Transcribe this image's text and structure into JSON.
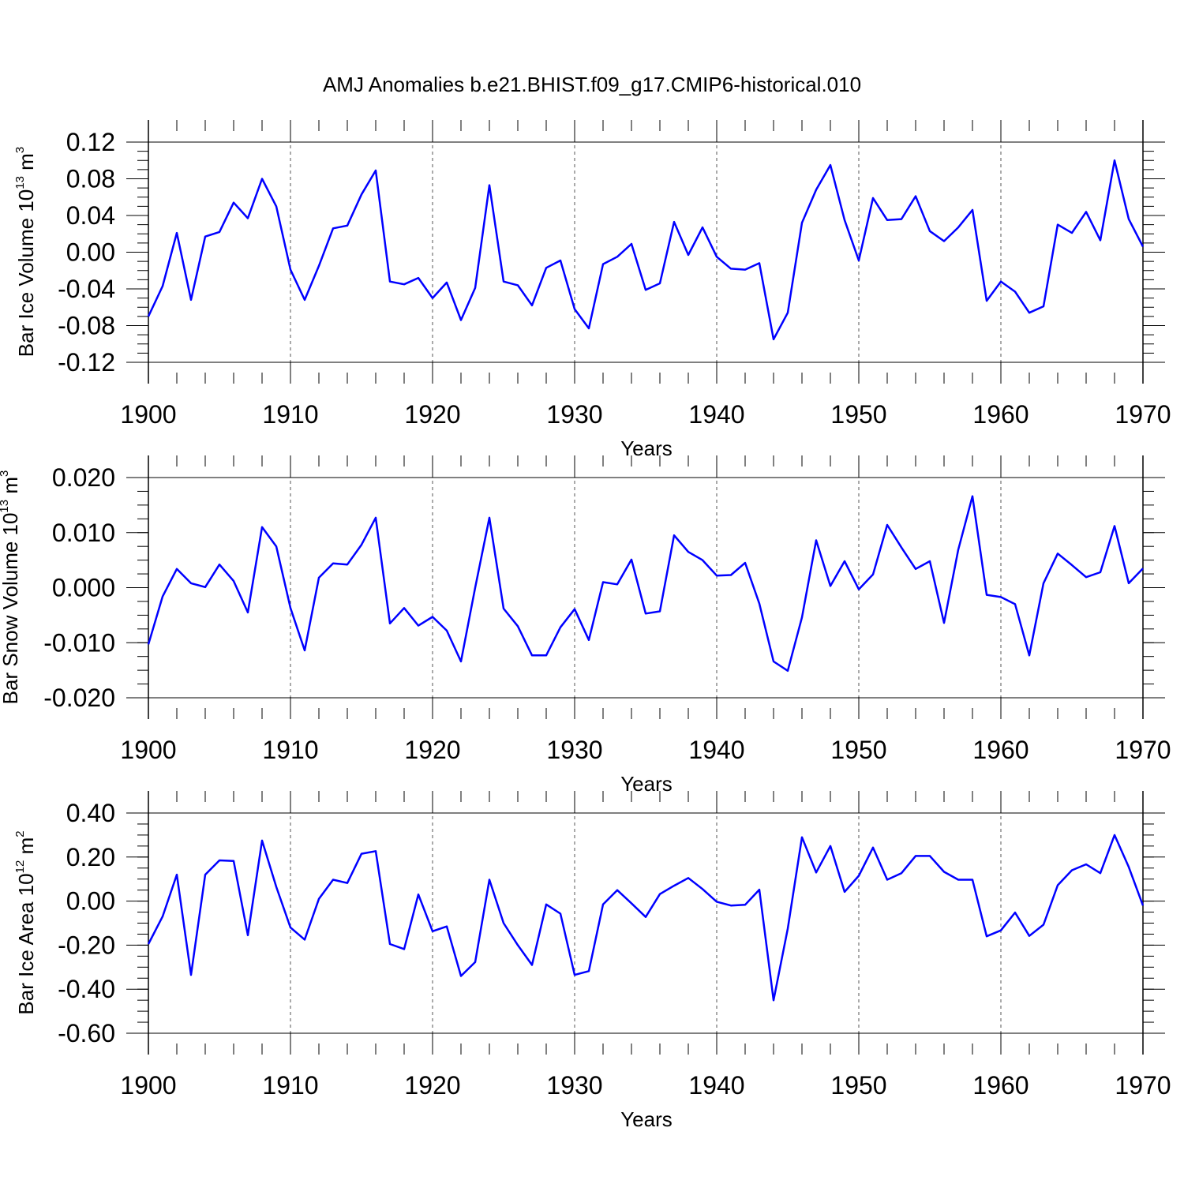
{
  "chart_data": {
    "title": "AMJ Anomalies b.e21.BHIST.f09_g17.CMIP6-historical.010",
    "line_color": "#0000ff",
    "panels": [
      {
        "type": "line",
        "ylabel_main": "Bar Ice Volume 10",
        "ylabel_exp": "13",
        "ylabel_unit": " m",
        "ylabel_unit_exp": "3",
        "xlabel": "Years",
        "xlim": [
          1900,
          1970
        ],
        "ylim": [
          -0.12,
          0.12
        ],
        "y_ticks": [
          -0.12,
          -0.08,
          -0.04,
          0.0,
          0.04,
          0.08,
          0.12
        ],
        "y_tick_labels": [
          "-0.12",
          "-0.08",
          "-0.04",
          "0.00",
          "0.04",
          "0.08",
          "0.12"
        ],
        "x_ticks": [
          1900,
          1910,
          1920,
          1930,
          1940,
          1950,
          1960,
          1970
        ],
        "x_tick_labels": [
          "1900",
          "1910",
          "1920",
          "1930",
          "1940",
          "1950",
          "1960",
          "1970"
        ],
        "y": [
          -0.07,
          -0.037,
          0.021,
          -0.052,
          0.017,
          0.022,
          0.054,
          0.037,
          0.08,
          0.05,
          -0.019,
          -0.052,
          -0.015,
          0.026,
          0.029,
          0.063,
          0.089,
          -0.032,
          -0.035,
          -0.028,
          -0.05,
          -0.033,
          -0.074,
          -0.039,
          0.073,
          -0.032,
          -0.036,
          -0.058,
          -0.017,
          -0.009,
          -0.062,
          -0.083,
          -0.013,
          -0.005,
          0.009,
          -0.041,
          -0.034,
          0.033,
          -0.003,
          0.027,
          -0.005,
          -0.018,
          -0.019,
          -0.012,
          -0.095,
          -0.066,
          0.032,
          0.068,
          0.095,
          0.035,
          -0.009,
          0.059,
          0.035,
          0.036,
          0.061,
          0.023,
          0.012,
          0.027,
          0.046,
          -0.053,
          -0.032,
          -0.043,
          -0.066,
          -0.059,
          0.03,
          0.021,
          0.044,
          0.013,
          0.1,
          0.036,
          0.006
        ]
      },
      {
        "type": "line",
        "ylabel_main": "Bar Snow Volume 10",
        "ylabel_exp": "13",
        "ylabel_unit": " m",
        "ylabel_unit_exp": "3",
        "xlabel": "Years",
        "xlim": [
          1900,
          1970
        ],
        "ylim": [
          -0.02,
          0.02
        ],
        "y_ticks": [
          -0.02,
          -0.01,
          0.0,
          0.01,
          0.02
        ],
        "y_tick_labels": [
          "-0.020",
          "-0.010",
          "0.000",
          "0.010",
          "0.020"
        ],
        "x_ticks": [
          1900,
          1910,
          1920,
          1930,
          1940,
          1950,
          1960,
          1970
        ],
        "x_tick_labels": [
          "1900",
          "1910",
          "1920",
          "1930",
          "1940",
          "1950",
          "1960",
          "1970"
        ],
        "y": [
          -0.0103,
          -0.0016,
          0.0034,
          0.0008,
          0.0001,
          0.0042,
          0.0012,
          -0.0045,
          0.011,
          0.0075,
          -0.0037,
          -0.0114,
          0.0018,
          0.0044,
          0.0042,
          0.0078,
          0.0127,
          -0.0065,
          -0.0037,
          -0.0069,
          -0.0053,
          -0.0078,
          -0.0134,
          0.0,
          0.0127,
          -0.0038,
          -0.007,
          -0.0123,
          -0.0123,
          -0.0072,
          -0.0039,
          -0.0095,
          0.001,
          0.0006,
          0.0051,
          -0.0047,
          -0.0043,
          0.0095,
          0.0065,
          0.005,
          0.0022,
          0.0023,
          0.0045,
          -0.0029,
          -0.0134,
          -0.0151,
          -0.0054,
          0.0086,
          0.0003,
          0.0048,
          -0.0003,
          0.0024,
          0.0114,
          0.0073,
          0.0034,
          0.0048,
          -0.0064,
          0.0069,
          0.0166,
          -0.0013,
          -0.0017,
          -0.003,
          -0.0123,
          0.0008,
          0.0062,
          0.0041,
          0.0019,
          0.0028,
          0.0112,
          0.0008,
          0.0035
        ]
      },
      {
        "type": "line",
        "ylabel_main": "Bar Ice Area 10",
        "ylabel_exp": "12",
        "ylabel_unit": " m",
        "ylabel_unit_exp": "2",
        "xlabel": "Years",
        "xlim": [
          1900,
          1970
        ],
        "ylim": [
          -0.6,
          0.4
        ],
        "y_ticks": [
          -0.6,
          -0.4,
          -0.2,
          0.0,
          0.2,
          0.4
        ],
        "y_tick_labels": [
          "-0.60",
          "-0.40",
          "-0.20",
          "0.00",
          "0.20",
          "0.40"
        ],
        "x_ticks": [
          1900,
          1910,
          1920,
          1930,
          1940,
          1950,
          1960,
          1970
        ],
        "x_tick_labels": [
          "1900",
          "1910",
          "1920",
          "1930",
          "1940",
          "1950",
          "1960",
          "1970"
        ],
        "y": [
          -0.195,
          -0.07,
          0.12,
          -0.335,
          0.12,
          0.185,
          0.182,
          -0.155,
          0.275,
          0.065,
          -0.12,
          -0.175,
          0.01,
          0.097,
          0.082,
          0.215,
          0.227,
          -0.195,
          -0.218,
          0.03,
          -0.137,
          -0.115,
          -0.34,
          -0.277,
          0.097,
          -0.1,
          -0.2,
          -0.29,
          -0.015,
          -0.057,
          -0.335,
          -0.318,
          -0.015,
          0.05,
          -0.01,
          -0.072,
          0.032,
          0.07,
          0.105,
          0.055,
          -0.003,
          -0.02,
          -0.017,
          0.052,
          -0.45,
          -0.125,
          0.29,
          0.13,
          0.25,
          0.042,
          0.115,
          0.243,
          0.097,
          0.127,
          0.205,
          0.205,
          0.133,
          0.097,
          0.097,
          -0.16,
          -0.133,
          -0.052,
          -0.158,
          -0.107,
          0.072,
          0.14,
          0.167,
          0.127,
          0.3,
          0.155,
          -0.02
        ]
      }
    ]
  }
}
